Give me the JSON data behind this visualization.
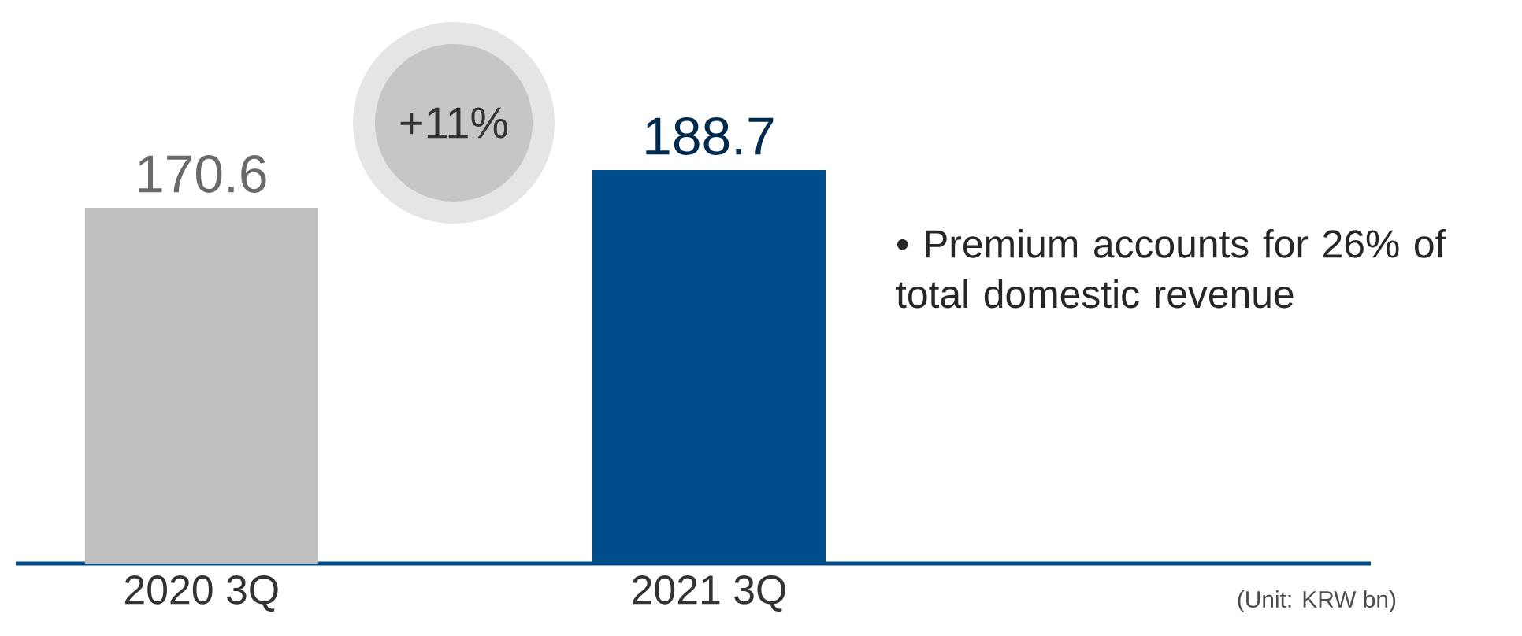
{
  "chart_data": {
    "type": "bar",
    "categories": [
      "2020 3Q",
      "2021 3Q"
    ],
    "values": [
      170.6,
      188.7
    ],
    "colors": [
      "#bfbfbf",
      "#004c8c"
    ],
    "data_labels": true,
    "annotations": [
      "+11%",
      "• Premium accounts for 26% of total domestic revenue",
      "(Unit: KRW bn)"
    ]
  }
}
